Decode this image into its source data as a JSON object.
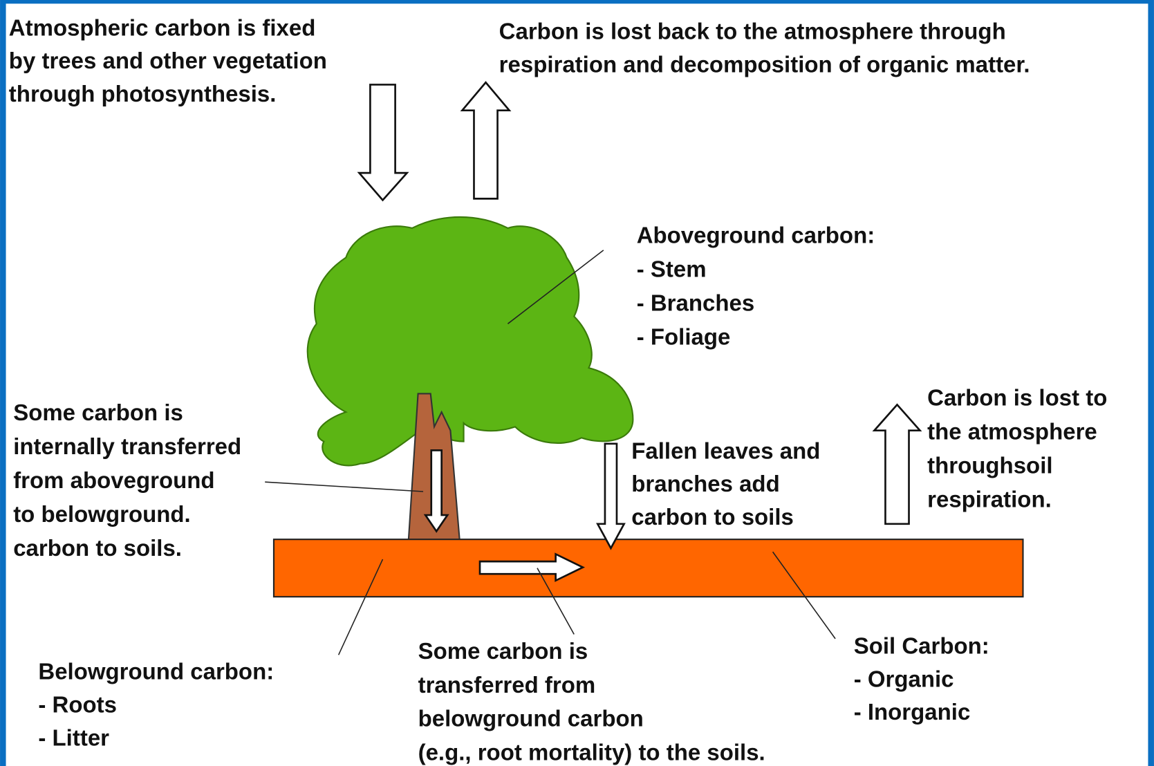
{
  "blocks": [
    {
      "lines": [
        "Atmospheric carbon is fixed",
        "by trees and other vegetation",
        "through photosynthesis."
      ]
    },
    {
      "lines": [
        "Carbon is lost back to the atmosphere through",
        "respiration and decomposition of organic matter."
      ]
    },
    {
      "lines": [
        "Aboveground carbon:",
        "- Stem",
        "- Branches",
        "- Foliage"
      ]
    },
    {
      "lines": [
        "Some carbon is",
        "internally transferred",
        "from aboveground",
        "to belowground.",
        "carbon to soils."
      ]
    },
    {
      "lines": [
        "Fallen leaves and",
        "branches add",
        "carbon to soils"
      ]
    },
    {
      "lines": [
        "Carbon is lost to",
        "the atmosphere",
        "throughsoil",
        "respiration."
      ]
    },
    {
      "lines": [
        "Belowground carbon:",
        "- Roots",
        "- Litter"
      ]
    },
    {
      "lines": [
        "Some carbon is",
        "transferred from",
        "belowground carbon",
        "(e.g., root mortality) to the soils."
      ]
    },
    {
      "lines": [
        "Soil Carbon:",
        "- Organic",
        "- Inorganic"
      ]
    }
  ]
}
